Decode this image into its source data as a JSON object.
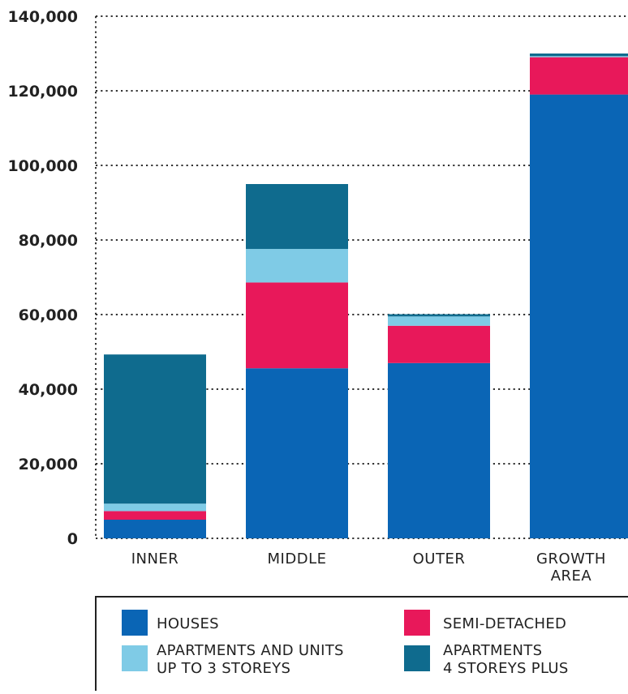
{
  "chart_data": {
    "type": "bar",
    "stacked": true,
    "categories": [
      "INNER",
      "MIDDLE",
      "OUTER",
      "GROWTH AREA"
    ],
    "series": [
      {
        "name": "HOUSES",
        "color": "#0a65b5",
        "values": [
          5000,
          45600,
          47000,
          119000
        ]
      },
      {
        "name": "SEMI-DETACHED",
        "color": "#e8185a",
        "values": [
          2300,
          23000,
          10000,
          10000
        ]
      },
      {
        "name": "APARTMENTS AND UNITS UP TO 3 STOREYS",
        "color": "#7fcbe6",
        "values": [
          2000,
          9000,
          2500,
          300
        ]
      },
      {
        "name": "APARTMENTS 4 STOREYS PLUS",
        "color": "#0f6b8e",
        "values": [
          40000,
          17400,
          600,
          700
        ]
      }
    ],
    "ylim": [
      0,
      140000
    ],
    "yticks": [
      0,
      20000,
      40000,
      60000,
      80000,
      100000,
      120000,
      140000
    ],
    "ytick_labels": [
      "0",
      "20,000",
      "40,000",
      "60,000",
      "80,000",
      "100,000",
      "120,000",
      "140,000"
    ],
    "grid": "horizontal dotted",
    "legend_position": "bottom",
    "legend_labels": [
      {
        "lines": [
          "HOUSES"
        ]
      },
      {
        "lines": [
          "SEMI-DETACHED"
        ]
      },
      {
        "lines": [
          "APARTMENTS AND UNITS",
          "UP TO 3 STOREYS"
        ]
      },
      {
        "lines": [
          "APARTMENTS",
          "4 STOREYS PLUS"
        ]
      }
    ],
    "category_labels": [
      [
        "INNER"
      ],
      [
        "MIDDLE"
      ],
      [
        "OUTER"
      ],
      [
        "GROWTH",
        "AREA"
      ]
    ]
  }
}
